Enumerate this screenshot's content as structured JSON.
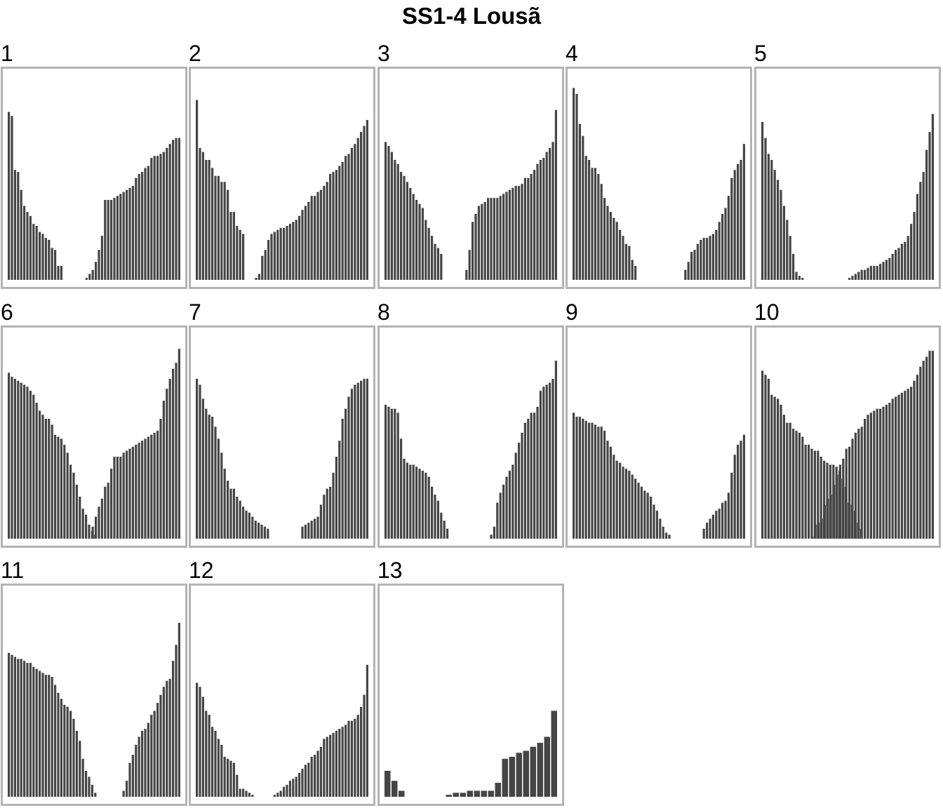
{
  "chart_data": {
    "title": "SS1-4 Lousã",
    "type": "bar",
    "layout": "small multiples, 5 columns, bars sorted descending then ascending",
    "bar_color": "#454545",
    "frame_color": "#b3b3b3",
    "ylim": [
      0,
      1
    ],
    "panels": [
      {
        "label": "1",
        "left": [
          0.84,
          0.82,
          0.55,
          0.54,
          0.45,
          0.37,
          0.34,
          0.32,
          0.28,
          0.27,
          0.24,
          0.23,
          0.21,
          0.2,
          0.16,
          0.15,
          0.07,
          0.07
        ],
        "right": [
          0.01,
          0.03,
          0.05,
          0.09,
          0.15,
          0.22,
          0.4,
          0.4,
          0.4,
          0.41,
          0.42,
          0.43,
          0.44,
          0.45,
          0.46,
          0.47,
          0.51,
          0.53,
          0.54,
          0.56,
          0.57,
          0.61,
          0.62,
          0.62,
          0.63,
          0.64,
          0.66,
          0.68,
          0.7,
          0.71,
          0.71
        ]
      },
      {
        "label": "2",
        "left": [
          0.9,
          0.66,
          0.64,
          0.6,
          0.6,
          0.56,
          0.52,
          0.52,
          0.49,
          0.49,
          0.45,
          0.34,
          0.34,
          0.27,
          0.25,
          0.23
        ],
        "right": [
          0.01,
          0.03,
          0.12,
          0.15,
          0.2,
          0.23,
          0.24,
          0.25,
          0.26,
          0.26,
          0.27,
          0.28,
          0.29,
          0.3,
          0.32,
          0.35,
          0.37,
          0.39,
          0.42,
          0.42,
          0.44,
          0.45,
          0.47,
          0.49,
          0.53,
          0.54,
          0.55,
          0.57,
          0.59,
          0.62,
          0.63,
          0.66,
          0.68,
          0.71,
          0.74,
          0.77,
          0.8
        ]
      },
      {
        "label": "3",
        "left": [
          0.69,
          0.67,
          0.64,
          0.6,
          0.58,
          0.54,
          0.52,
          0.49,
          0.46,
          0.43,
          0.4,
          0.38,
          0.36,
          0.3,
          0.26,
          0.22,
          0.18,
          0.16,
          0.13
        ],
        "right": [
          0.05,
          0.15,
          0.29,
          0.33,
          0.37,
          0.38,
          0.39,
          0.41,
          0.41,
          0.41,
          0.41,
          0.42,
          0.43,
          0.44,
          0.45,
          0.46,
          0.47,
          0.47,
          0.48,
          0.51,
          0.51,
          0.53,
          0.55,
          0.58,
          0.6,
          0.61,
          0.64,
          0.66,
          0.69,
          0.85
        ]
      },
      {
        "label": "4",
        "left": [
          0.96,
          0.93,
          0.78,
          0.72,
          0.62,
          0.6,
          0.56,
          0.56,
          0.53,
          0.48,
          0.41,
          0.37,
          0.34,
          0.31,
          0.29,
          0.25,
          0.22,
          0.18,
          0.17,
          0.1,
          0.07
        ],
        "right": [
          0.05,
          0.09,
          0.14,
          0.15,
          0.18,
          0.2,
          0.21,
          0.21,
          0.22,
          0.23,
          0.25,
          0.29,
          0.33,
          0.36,
          0.42,
          0.51,
          0.55,
          0.58,
          0.6,
          0.68
        ]
      },
      {
        "label": "5",
        "left": [
          0.79,
          0.71,
          0.63,
          0.6,
          0.55,
          0.5,
          0.45,
          0.37,
          0.3,
          0.22,
          0.13,
          0.04,
          0.02,
          0.01
        ],
        "right": [
          0.01,
          0.02,
          0.03,
          0.04,
          0.05,
          0.05,
          0.06,
          0.07,
          0.07,
          0.07,
          0.08,
          0.09,
          0.1,
          0.11,
          0.13,
          0.15,
          0.16,
          0.18,
          0.19,
          0.22,
          0.28,
          0.34,
          0.43,
          0.49,
          0.54,
          0.65,
          0.74,
          0.83
        ]
      },
      {
        "label": "6",
        "left": [
          0.83,
          0.81,
          0.8,
          0.79,
          0.78,
          0.77,
          0.76,
          0.74,
          0.72,
          0.68,
          0.64,
          0.62,
          0.6,
          0.6,
          0.57,
          0.52,
          0.51,
          0.5,
          0.47,
          0.43,
          0.37,
          0.33,
          0.27,
          0.21,
          0.15,
          0.12,
          0.07,
          0.04,
          0.02
        ],
        "right": [
          0.06,
          0.11,
          0.16,
          0.2,
          0.26,
          0.28,
          0.35,
          0.41,
          0.41,
          0.41,
          0.43,
          0.44,
          0.45,
          0.46,
          0.47,
          0.48,
          0.49,
          0.5,
          0.51,
          0.52,
          0.53,
          0.54,
          0.6,
          0.69,
          0.75,
          0.8,
          0.85,
          0.88,
          0.95
        ]
      },
      {
        "label": "7",
        "left": [
          0.8,
          0.77,
          0.7,
          0.65,
          0.62,
          0.61,
          0.56,
          0.5,
          0.43,
          0.35,
          0.29,
          0.25,
          0.25,
          0.21,
          0.19,
          0.16,
          0.14,
          0.13,
          0.11,
          0.09,
          0.08,
          0.07,
          0.06,
          0.05
        ],
        "right": [
          0.06,
          0.07,
          0.08,
          0.09,
          0.1,
          0.11,
          0.17,
          0.22,
          0.25,
          0.26,
          0.33,
          0.41,
          0.49,
          0.6,
          0.65,
          0.71,
          0.75,
          0.77,
          0.78,
          0.79,
          0.8,
          0.8
        ]
      },
      {
        "label": "8",
        "left": [
          0.67,
          0.66,
          0.65,
          0.65,
          0.63,
          0.5,
          0.4,
          0.38,
          0.37,
          0.37,
          0.36,
          0.35,
          0.34,
          0.33,
          0.31,
          0.26,
          0.22,
          0.19,
          0.13,
          0.09,
          0.05
        ],
        "right": [
          0.02,
          0.06,
          0.18,
          0.23,
          0.27,
          0.31,
          0.34,
          0.37,
          0.43,
          0.48,
          0.53,
          0.58,
          0.6,
          0.63,
          0.63,
          0.66,
          0.74,
          0.76,
          0.77,
          0.78,
          0.8,
          0.89
        ]
      },
      {
        "label": "9",
        "left": [
          0.63,
          0.61,
          0.61,
          0.6,
          0.59,
          0.58,
          0.58,
          0.57,
          0.56,
          0.56,
          0.54,
          0.49,
          0.46,
          0.42,
          0.39,
          0.38,
          0.36,
          0.35,
          0.34,
          0.32,
          0.3,
          0.28,
          0.26,
          0.24,
          0.23,
          0.21,
          0.17,
          0.14,
          0.1,
          0.06,
          0.03,
          0.02
        ],
        "right": [
          0.05,
          0.08,
          0.1,
          0.12,
          0.14,
          0.15,
          0.18,
          0.19,
          0.23,
          0.33,
          0.42,
          0.47,
          0.49,
          0.52
        ]
      },
      {
        "label": "10",
        "left": [
          0.84,
          0.82,
          0.8,
          0.72,
          0.71,
          0.7,
          0.67,
          0.62,
          0.58,
          0.58,
          0.55,
          0.54,
          0.53,
          0.51,
          0.47,
          0.47,
          0.45,
          0.44,
          0.44,
          0.41,
          0.39,
          0.38,
          0.37,
          0.37,
          0.36,
          0.34,
          0.3,
          0.26,
          0.18,
          0.17,
          0.14,
          0.08,
          0.05
        ],
        "right": [
          0.01,
          0.07,
          0.08,
          0.1,
          0.17,
          0.2,
          0.22,
          0.27,
          0.32,
          0.37,
          0.4,
          0.45,
          0.46,
          0.5,
          0.53,
          0.55,
          0.56,
          0.6,
          0.62,
          0.63,
          0.64,
          0.65,
          0.65,
          0.66,
          0.67,
          0.68,
          0.7,
          0.71,
          0.72,
          0.73,
          0.74,
          0.75,
          0.76,
          0.79,
          0.82,
          0.86,
          0.89,
          0.91,
          0.94,
          0.94
        ]
      },
      {
        "label": "11",
        "left": [
          0.72,
          0.71,
          0.7,
          0.69,
          0.69,
          0.68,
          0.67,
          0.67,
          0.65,
          0.64,
          0.63,
          0.62,
          0.61,
          0.61,
          0.6,
          0.56,
          0.52,
          0.49,
          0.46,
          0.45,
          0.43,
          0.39,
          0.33,
          0.28,
          0.19,
          0.13,
          0.1,
          0.06,
          0.02
        ],
        "right": [
          0.03,
          0.08,
          0.17,
          0.21,
          0.26,
          0.3,
          0.33,
          0.34,
          0.37,
          0.41,
          0.43,
          0.47,
          0.51,
          0.55,
          0.58,
          0.59,
          0.68,
          0.76,
          0.87
        ]
      },
      {
        "label": "12",
        "left": [
          0.57,
          0.55,
          0.5,
          0.43,
          0.41,
          0.35,
          0.33,
          0.29,
          0.26,
          0.2,
          0.19,
          0.18,
          0.17,
          0.11,
          0.04,
          0.04,
          0.03,
          0.02,
          0.01
        ],
        "right": [
          0.01,
          0.02,
          0.03,
          0.05,
          0.06,
          0.08,
          0.09,
          0.1,
          0.12,
          0.14,
          0.16,
          0.17,
          0.2,
          0.21,
          0.23,
          0.25,
          0.29,
          0.3,
          0.31,
          0.32,
          0.33,
          0.34,
          0.35,
          0.36,
          0.38,
          0.38,
          0.39,
          0.41,
          0.45,
          0.51,
          0.66
        ]
      },
      {
        "label": "13",
        "left": [
          0.13,
          0.08,
          0.03
        ],
        "right": [
          0.01,
          0.02,
          0.02,
          0.03,
          0.03,
          0.03,
          0.03,
          0.07,
          0.19,
          0.2,
          0.22,
          0.23,
          0.25,
          0.27,
          0.3,
          0.43
        ]
      }
    ]
  }
}
